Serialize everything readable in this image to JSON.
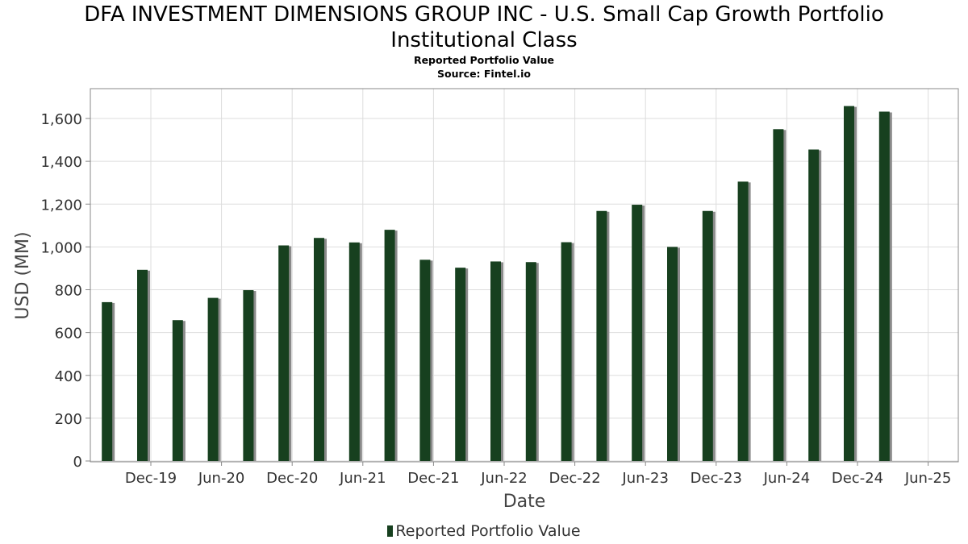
{
  "header": {
    "title_line1": "DFA INVESTMENT DIMENSIONS GROUP INC - U.S. Small Cap Growth Portfolio",
    "title_line2": "Institutional Class",
    "subtitle": "Reported Portfolio Value",
    "source": "Source: Fintel.io"
  },
  "colors": {
    "bar": "#17401f",
    "bar_shadow": "#8a8a8a",
    "grid": "#dddddd",
    "axis": "#888888"
  },
  "chart_data": {
    "type": "bar",
    "title": "Reported Portfolio Value",
    "xlabel": "Date",
    "ylabel": "USD (MM)",
    "ylim": [
      0,
      1750
    ],
    "yticks": [
      0,
      200,
      400,
      600,
      800,
      1000,
      1200,
      1400,
      1600
    ],
    "ytick_labels": [
      "0",
      "200",
      "400",
      "600",
      "800",
      "1,000",
      "1,200",
      "1,400",
      "1,600"
    ],
    "xtick_labels": [
      "Dec-19",
      "Jun-20",
      "Dec-20",
      "Jun-21",
      "Dec-21",
      "Jun-22",
      "Dec-22",
      "Jun-23",
      "Dec-23",
      "Jun-24",
      "Dec-24",
      "Jun-25"
    ],
    "grid": true,
    "legend_position": "bottom-center",
    "series": [
      {
        "name": "Reported Portfolio Value",
        "points": [
          {
            "x": "2019-09",
            "y": 742
          },
          {
            "x": "2019-12",
            "y": 893
          },
          {
            "x": "2020-03",
            "y": 658
          },
          {
            "x": "2020-06",
            "y": 762
          },
          {
            "x": "2020-09",
            "y": 798
          },
          {
            "x": "2020-12",
            "y": 1007
          },
          {
            "x": "2021-03",
            "y": 1042
          },
          {
            "x": "2021-06",
            "y": 1021
          },
          {
            "x": "2021-09",
            "y": 1080
          },
          {
            "x": "2021-12",
            "y": 940
          },
          {
            "x": "2022-03",
            "y": 903
          },
          {
            "x": "2022-06",
            "y": 932
          },
          {
            "x": "2022-09",
            "y": 929
          },
          {
            "x": "2022-12",
            "y": 1022
          },
          {
            "x": "2023-03",
            "y": 1168
          },
          {
            "x": "2023-06",
            "y": 1197
          },
          {
            "x": "2023-09",
            "y": 1000
          },
          {
            "x": "2023-12",
            "y": 1168
          },
          {
            "x": "2024-03",
            "y": 1305
          },
          {
            "x": "2024-06",
            "y": 1550
          },
          {
            "x": "2024-09",
            "y": 1455
          },
          {
            "x": "2024-12",
            "y": 1658
          },
          {
            "x": "2025-03",
            "y": 1632
          }
        ]
      }
    ]
  }
}
